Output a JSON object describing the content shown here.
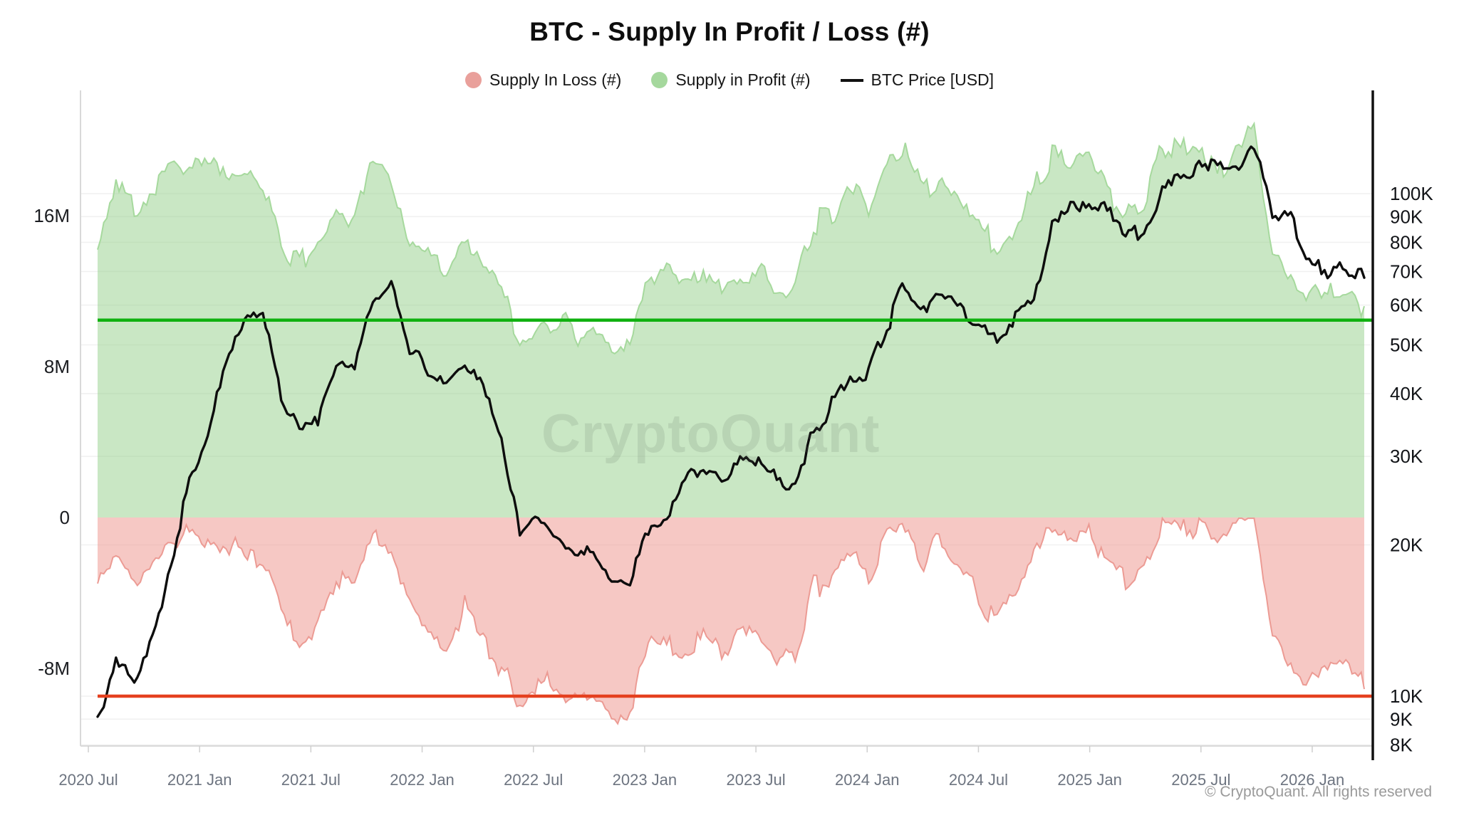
{
  "header": {
    "title": "BTC - Supply In Profit / Loss (#)"
  },
  "legend": {
    "items": [
      {
        "label": "Supply In Loss (#)",
        "marker": "dot",
        "color": "#e9a09b"
      },
      {
        "label": "Supply in Profit (#)",
        "marker": "dot",
        "color": "#a5d89d"
      },
      {
        "label": "BTC Price [USD]",
        "marker": "line",
        "color": "#111111"
      }
    ]
  },
  "watermark": "CryptoQuant",
  "copyright": "© CryptoQuant. All rights reserved",
  "colors": {
    "profit_fill": "rgba(151,209,141,0.52)",
    "profit_stroke": "#a6d99d",
    "loss_fill": "rgba(238,154,147,0.55)",
    "loss_stroke": "#ec9b94",
    "price_line": "#0d0d0d",
    "ref_green": "#10b110",
    "ref_red": "#e5401f",
    "grid": "#f1f1f1",
    "spine": "#d9d9d9",
    "right_spine": "#111111",
    "tick": "#cfcfcf"
  },
  "chart_data": {
    "type": "area",
    "title": "BTC - Supply In Profit / Loss (#)",
    "x_monthly": [
      "2020-07",
      "2020-08",
      "2020-09",
      "2020-10",
      "2020-11",
      "2020-12",
      "2021-01",
      "2021-02",
      "2021-03",
      "2021-04",
      "2021-05",
      "2021-06",
      "2021-07",
      "2021-08",
      "2021-09",
      "2021-10",
      "2021-11",
      "2021-12",
      "2022-01",
      "2022-02",
      "2022-03",
      "2022-04",
      "2022-05",
      "2022-06",
      "2022-07",
      "2022-08",
      "2022-09",
      "2022-10",
      "2022-11",
      "2022-12",
      "2023-01",
      "2023-02",
      "2023-03",
      "2023-04",
      "2023-05",
      "2023-06",
      "2023-07",
      "2023-08",
      "2023-09",
      "2023-10",
      "2023-11",
      "2023-12",
      "2024-01",
      "2024-02",
      "2024-03",
      "2024-04",
      "2024-05",
      "2024-06",
      "2024-07",
      "2024-08",
      "2024-09",
      "2024-10",
      "2024-11",
      "2024-12",
      "2025-01",
      "2025-02",
      "2025-03",
      "2025-04",
      "2025-05",
      "2025-06",
      "2025-07",
      "2025-08",
      "2025-09",
      "2025-10",
      "2025-11",
      "2025-12",
      "2026-01",
      "2026-02",
      "2026-03",
      "2026-04"
    ],
    "series": [
      {
        "name": "Supply in Profit (#)",
        "axis": "left",
        "unit": "M BTC",
        "values": [
          14.2,
          17.6,
          16.3,
          17.4,
          18.4,
          18.7,
          18.5,
          18.3,
          17.8,
          17.9,
          14.8,
          13.2,
          14.5,
          16.6,
          15.8,
          18.5,
          17.5,
          14.8,
          13.8,
          12.8,
          14.8,
          13.2,
          11.5,
          9.8,
          10.3,
          10.6,
          9.8,
          9.9,
          8.8,
          9.2,
          12.4,
          12.8,
          12.2,
          12.9,
          12.4,
          12.9,
          13.1,
          11.8,
          12.2,
          15.5,
          16.2,
          18.0,
          16.2,
          19.2,
          19.6,
          17.3,
          18.2,
          16.6,
          15.2,
          14.2,
          15.3,
          17.2,
          19.5,
          18.9,
          19.6,
          16.8,
          16.2,
          16.6,
          19.9,
          19.3,
          19.8,
          18.4,
          19.8,
          20.3,
          13.8,
          12.6,
          11.4,
          11.9,
          12.3,
          11.2
        ]
      },
      {
        "name": "Supply In Loss (#)",
        "axis": "left",
        "unit": "M BTC (negative = in loss)",
        "values": [
          -3.5,
          -2.2,
          -3.6,
          -2.4,
          -1.4,
          -1.0,
          -1.3,
          -1.5,
          -2.1,
          -2.0,
          -5.2,
          -6.4,
          -5.4,
          -3.0,
          -3.8,
          -1.0,
          -2.0,
          -4.6,
          -5.6,
          -6.6,
          -4.7,
          -6.2,
          -7.9,
          -9.6,
          -9.0,
          -8.7,
          -9.5,
          -9.4,
          -10.4,
          -10.1,
          -7.0,
          -6.6,
          -7.1,
          -6.4,
          -6.9,
          -6.4,
          -6.2,
          -7.5,
          -7.1,
          -3.8,
          -3.1,
          -1.4,
          -3.1,
          -0.8,
          -0.4,
          -2.2,
          -1.3,
          -2.8,
          -4.2,
          -5.5,
          -4.1,
          -2.2,
          -0.4,
          -1.2,
          -0.3,
          -2.9,
          -3.3,
          -3.0,
          -0.3,
          -0.9,
          -0.3,
          -1.6,
          -0.4,
          -0.2,
          -6.4,
          -7.6,
          -8.8,
          -8.3,
          -7.9,
          -9.1
        ]
      },
      {
        "name": "BTC Price [USD]",
        "axis": "right_log",
        "unit": "USD",
        "values": [
          9100,
          11500,
          10500,
          13000,
          18500,
          27000,
          34000,
          48000,
          57000,
          60000,
          40000,
          34000,
          35000,
          47000,
          45000,
          61000,
          66000,
          50000,
          43000,
          42000,
          46000,
          43000,
          33000,
          20500,
          22500,
          21000,
          19500,
          19800,
          16400,
          16600,
          21500,
          23000,
          26500,
          28500,
          27000,
          29500,
          29300,
          26500,
          27000,
          33000,
          38000,
          43500,
          44000,
          54000,
          66000,
          60000,
          62000,
          60000,
          56000,
          52500,
          56000,
          61000,
          85000,
          93000,
          98000,
          92000,
          82000,
          85000,
          103000,
          106000,
          117000,
          113000,
          114000,
          124000,
          92000,
          89000,
          74000,
          70000,
          72000,
          68000
        ]
      }
    ],
    "left_axis": {
      "ticks": [
        {
          "label": "16M",
          "value": 16
        },
        {
          "label": "8M",
          "value": 8
        },
        {
          "label": "0",
          "value": 0
        },
        {
          "label": "-8M",
          "value": -8
        }
      ],
      "range_m": [
        -11.5,
        22.6
      ],
      "grid": false
    },
    "right_axis": {
      "scale": "log",
      "ticks": [
        {
          "label": "100K",
          "value": 100000
        },
        {
          "label": "90K",
          "value": 90000
        },
        {
          "label": "80K",
          "value": 80000
        },
        {
          "label": "70K",
          "value": 70000
        },
        {
          "label": "60K",
          "value": 60000
        },
        {
          "label": "50K",
          "value": 50000
        },
        {
          "label": "40K",
          "value": 40000
        },
        {
          "label": "30K",
          "value": 30000
        },
        {
          "label": "20K",
          "value": 20000
        },
        {
          "label": "10K",
          "value": 10000
        },
        {
          "label": "9K",
          "value": 9000
        },
        {
          "label": "8K",
          "value": 8000
        }
      ],
      "grid": true
    },
    "x_axis": {
      "ticks": [
        {
          "label": "2020 Jul",
          "month_offset": 0
        },
        {
          "label": "2021 Jan",
          "month_offset": 6
        },
        {
          "label": "2021 Jul",
          "month_offset": 12
        },
        {
          "label": "2022 Jan",
          "month_offset": 18
        },
        {
          "label": "2022 Jul",
          "month_offset": 24
        },
        {
          "label": "2023 Jan",
          "month_offset": 30
        },
        {
          "label": "2023 Jul",
          "month_offset": 36
        },
        {
          "label": "2024 Jan",
          "month_offset": 42
        },
        {
          "label": "2024 Jul",
          "month_offset": 48
        },
        {
          "label": "2025 Jan",
          "month_offset": 54
        },
        {
          "label": "2025 Jul",
          "month_offset": 60
        },
        {
          "label": "2026 Jan",
          "month_offset": 66
        }
      ]
    },
    "reference_lines": [
      {
        "name": "green-level-line",
        "axis": "right_log",
        "value": 56000,
        "approx_left_axis_m": 10.5,
        "color": "#10b110"
      },
      {
        "name": "red-level-line",
        "axis": "right_log",
        "value": 10000,
        "approx_left_axis_m": -9.5,
        "color": "#e5401f"
      }
    ],
    "legend_position": "top"
  }
}
